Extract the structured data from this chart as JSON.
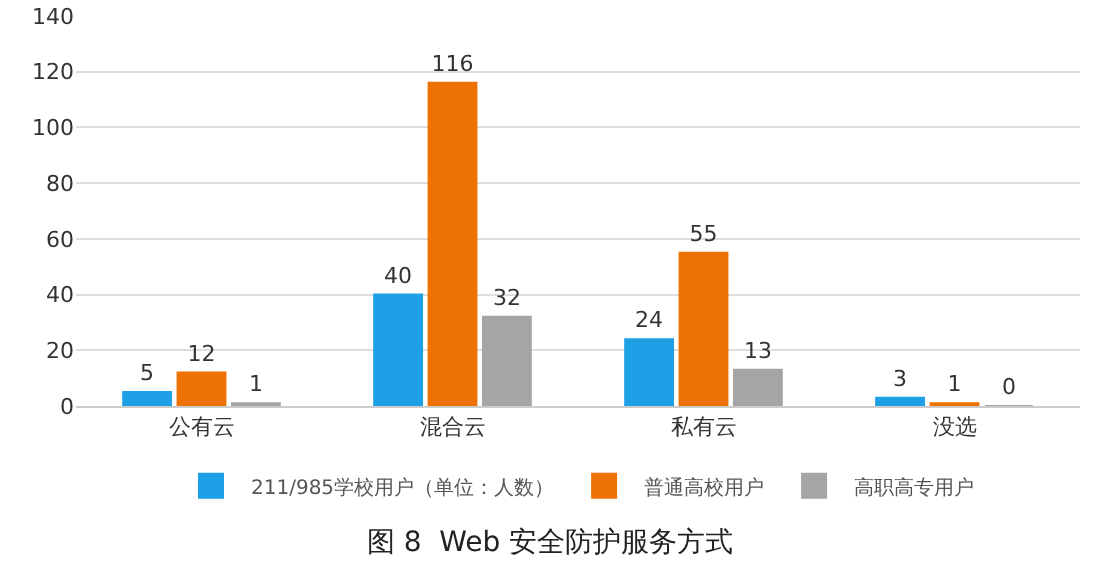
{
  "chart_data": {
    "type": "bar",
    "title": "图 8  Web 安全防护服务方式",
    "categories": [
      "公有云",
      "混合云",
      "私有云",
      "没选"
    ],
    "series": [
      {
        "name": "211/985学校用户（单位：人数）",
        "color": "#1ea0e6",
        "values": [
          5,
          40,
          24,
          3
        ]
      },
      {
        "name": "普通高校用户",
        "color": "#ee7203",
        "values": [
          12,
          116,
          55,
          1
        ]
      },
      {
        "name": "高职高专用户",
        "color": "#a5a5a5",
        "values": [
          1,
          32,
          13,
          0
        ]
      }
    ],
    "ylim": [
      0,
      140
    ],
    "yticks": [
      0,
      20,
      40,
      60,
      80,
      100,
      120,
      140
    ],
    "grid": "y",
    "legend": "bottom",
    "data_labels": true
  }
}
